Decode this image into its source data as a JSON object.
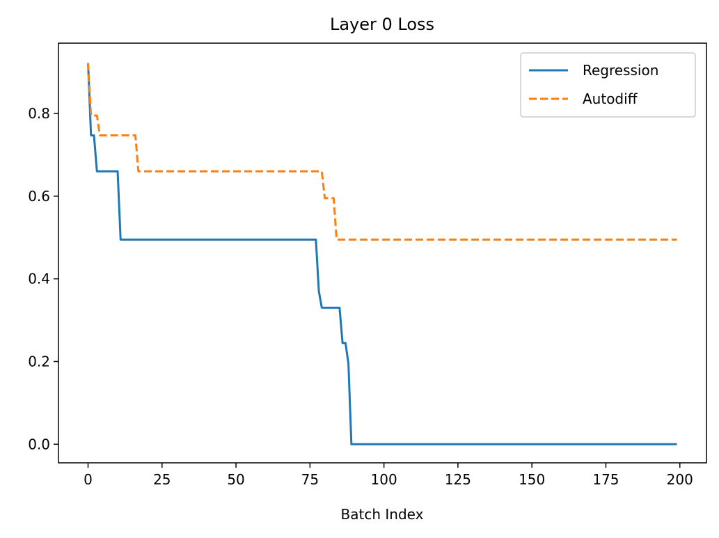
{
  "chart_data": {
    "type": "line",
    "title": "Layer 0 Loss",
    "xlabel": "Batch Index",
    "ylabel": "",
    "xlim": [
      -10,
      209
    ],
    "ylim": [
      -0.045,
      0.97
    ],
    "x_ticks": [
      0,
      25,
      50,
      75,
      100,
      125,
      150,
      175,
      200
    ],
    "x_tick_labels": [
      "0",
      "25",
      "50",
      "75",
      "100",
      "125",
      "150",
      "175",
      "200"
    ],
    "y_ticks": [
      0.0,
      0.2,
      0.4,
      0.6,
      0.8
    ],
    "y_tick_labels": [
      "0.0",
      "0.2",
      "0.4",
      "0.6",
      "0.8"
    ],
    "grid": false,
    "legend_position": "top-right",
    "series": [
      {
        "name": "Regression",
        "color": "#1f77b4",
        "style": "solid",
        "points": [
          [
            0,
            0.922
          ],
          [
            1,
            0.747
          ],
          [
            2,
            0.747
          ],
          [
            3,
            0.66
          ],
          [
            4,
            0.66
          ],
          [
            10,
            0.66
          ],
          [
            11,
            0.495
          ],
          [
            20,
            0.495
          ],
          [
            50,
            0.495
          ],
          [
            77,
            0.495
          ],
          [
            78,
            0.37
          ],
          [
            79,
            0.33
          ],
          [
            85,
            0.33
          ],
          [
            86,
            0.245
          ],
          [
            87,
            0.245
          ],
          [
            88,
            0.195
          ],
          [
            89,
            0.0
          ],
          [
            120,
            0.0
          ],
          [
            199,
            0.0
          ]
        ]
      },
      {
        "name": "Autodiff",
        "color": "#ff7f0e",
        "style": "dashed",
        "points": [
          [
            0,
            0.922
          ],
          [
            1,
            0.795
          ],
          [
            3,
            0.795
          ],
          [
            4,
            0.747
          ],
          [
            10,
            0.747
          ],
          [
            16,
            0.747
          ],
          [
            17,
            0.66
          ],
          [
            40,
            0.66
          ],
          [
            79,
            0.66
          ],
          [
            80,
            0.595
          ],
          [
            83,
            0.595
          ],
          [
            84,
            0.495
          ],
          [
            120,
            0.495
          ],
          [
            199,
            0.495
          ]
        ]
      }
    ]
  }
}
